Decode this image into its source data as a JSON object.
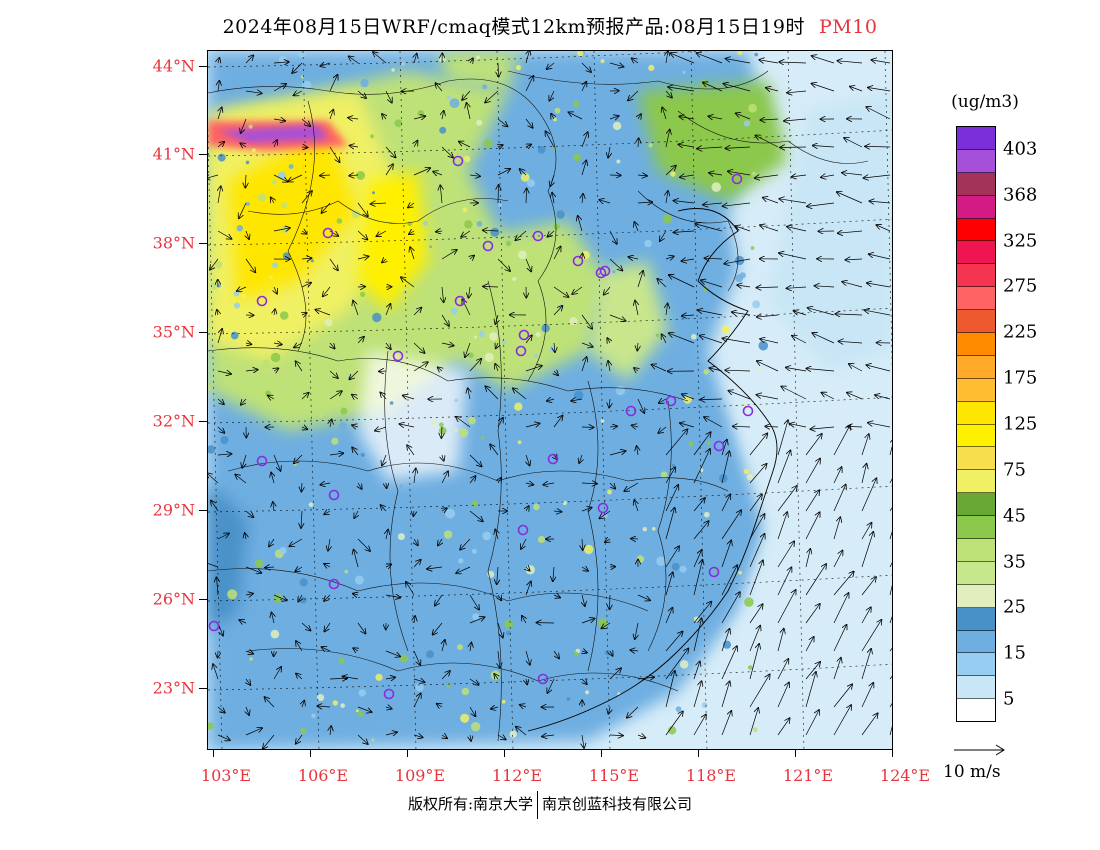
{
  "header": {
    "title": "2024年08月15日WRF/cmaq模式12km预报产品:08月15日19时",
    "pollutant": "PM10"
  },
  "map": {
    "lat_labels": [
      "44°N",
      "41°N",
      "38°N",
      "35°N",
      "32°N",
      "29°N",
      "26°N",
      "23°N"
    ],
    "lon_labels": [
      "103°E",
      "106°E",
      "109°E",
      "112°E",
      "115°E",
      "118°E",
      "121°E",
      "124°E"
    ],
    "colors": {
      "lat_lon_label": "#e8343c",
      "border": "#000000"
    }
  },
  "legend": {
    "unit": "(ug/m3)",
    "colors_top_to_bottom": [
      "#7a2fd9",
      "#a64fd9",
      "#a2345a",
      "#d41b84",
      "#ff0000",
      "#ee1550",
      "#f5344f",
      "#ff6464",
      "#ee5a2e",
      "#ff8c00",
      "#ffa928",
      "#ffbe32",
      "#ffe600",
      "#fff000",
      "#f7de4d",
      "#f0f064",
      "#66a833",
      "#8cc84b",
      "#bee178",
      "#c8e68c",
      "#e1efbe",
      "#4891c8",
      "#6eaee1",
      "#96cdf0",
      "#c8e6f5",
      "#ffffff"
    ],
    "labels": [
      "403",
      "368",
      "325",
      "275",
      "225",
      "175",
      "125",
      "75",
      "45",
      "35",
      "25",
      "15",
      "5"
    ]
  },
  "wind_reference": {
    "label": "10 m/s"
  },
  "footer": {
    "copyright_prefix": "版权所有:南京大学",
    "copyright_company": "南京创蓝科技有限公司"
  }
}
